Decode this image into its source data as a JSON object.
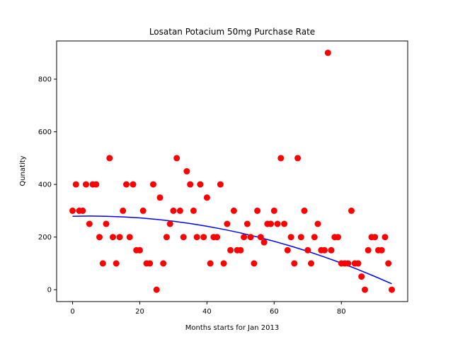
{
  "chart_data": {
    "type": "scatter",
    "title": "Losatan Potacium 50mg Purchase Rate",
    "xlabel": "Months starts for Jan 2013",
    "ylabel": "Qunatity",
    "xlim": [
      -4.75,
      99.75
    ],
    "ylim": [
      -45,
      945
    ],
    "xticks": [
      0,
      20,
      40,
      60,
      80
    ],
    "yticks": [
      0,
      200,
      400,
      600,
      800
    ],
    "grid": false,
    "colors": {
      "points": "#ff0000",
      "trend": "#0000ff"
    },
    "series": [
      {
        "kind": "points",
        "x": [
          0,
          1,
          2,
          3,
          4,
          5,
          6,
          7,
          8,
          9,
          10,
          11,
          12,
          13,
          14,
          15,
          16,
          17,
          18,
          19,
          20,
          21,
          22,
          23,
          24,
          25,
          26,
          27,
          28,
          29,
          30,
          31,
          32,
          33,
          34,
          35,
          36,
          37,
          38,
          39,
          40,
          41,
          42,
          43,
          44,
          45,
          46,
          47,
          48,
          49,
          50,
          51,
          52,
          53,
          54,
          55,
          56,
          57,
          58,
          59,
          60,
          61,
          62,
          63,
          64,
          65,
          66,
          67,
          68,
          69,
          70,
          71,
          72,
          73,
          74,
          75,
          76,
          77,
          78,
          79,
          80,
          81,
          82,
          83,
          84,
          85,
          86,
          87,
          88,
          89,
          90,
          91,
          92,
          93,
          94,
          95
        ],
        "y": [
          300,
          400,
          300,
          300,
          400,
          250,
          400,
          400,
          200,
          100,
          250,
          500,
          200,
          100,
          200,
          300,
          400,
          200,
          400,
          150,
          150,
          300,
          100,
          100,
          400,
          0,
          350,
          100,
          200,
          250,
          300,
          500,
          300,
          200,
          450,
          400,
          300,
          200,
          400,
          200,
          350,
          100,
          200,
          200,
          400,
          100,
          250,
          150,
          300,
          150,
          150,
          200,
          250,
          200,
          100,
          300,
          200,
          180,
          250,
          250,
          300,
          250,
          500,
          250,
          150,
          200,
          100,
          500,
          200,
          300,
          150,
          100,
          200,
          250,
          150,
          150,
          900,
          150,
          200,
          200,
          100,
          100,
          100,
          300,
          100,
          100,
          50,
          0,
          150,
          200,
          200,
          150,
          150,
          200,
          100,
          0
        ]
      },
      {
        "kind": "trend",
        "x": [
          0,
          5,
          10,
          15,
          20,
          25,
          30,
          35,
          40,
          45,
          50,
          55,
          60,
          65,
          70,
          75,
          80,
          85,
          90,
          95
        ],
        "y": [
          279,
          279.8,
          279,
          276.7,
          272.8,
          267.2,
          260.1,
          251.4,
          241.1,
          229.2,
          215.7,
          200.6,
          183.9,
          165.6,
          145.7,
          124.3,
          101.2,
          76.6,
          50.3,
          22.5
        ]
      }
    ]
  }
}
